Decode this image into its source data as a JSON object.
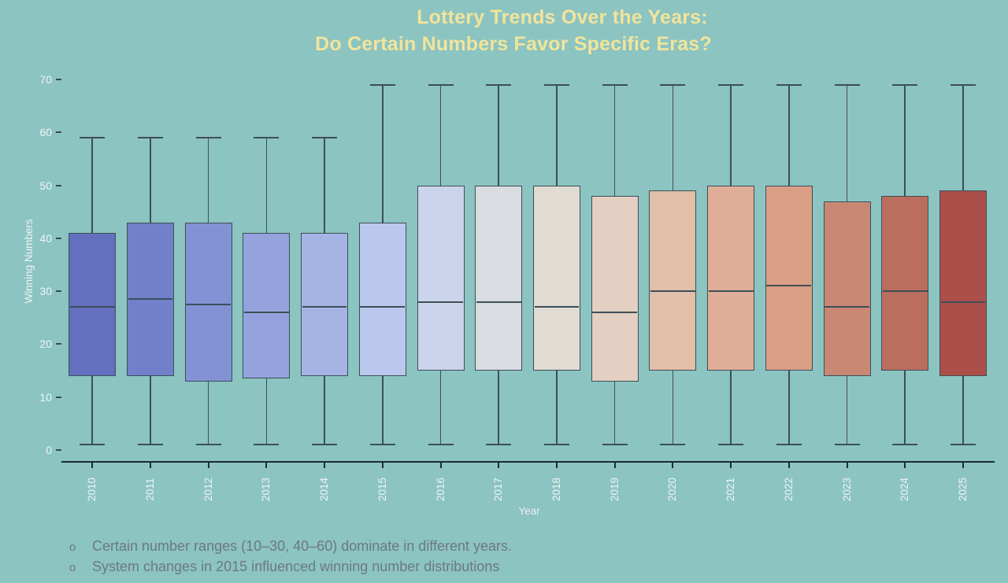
{
  "title": {
    "line1": "Lottery Trends Over the Years:",
    "line2": "Do Certain Numbers Favor Specific Eras?"
  },
  "chart_data": {
    "type": "box",
    "title": "Lottery Trends Over the Years: Do Certain Numbers Favor Specific Eras?",
    "xlabel": "Year",
    "ylabel": "Winning Numbers",
    "ylim": [
      0,
      70
    ],
    "yticks": [
      0,
      10,
      20,
      30,
      40,
      50,
      60,
      70
    ],
    "categories": [
      "2010",
      "2011",
      "2012",
      "2013",
      "2014",
      "2015",
      "2016",
      "2017",
      "2018",
      "2019",
      "2020",
      "2021",
      "2022",
      "2023",
      "2024",
      "2025"
    ],
    "series": [
      {
        "year": "2010",
        "whisker_low": 1,
        "q1": 14,
        "median": 27,
        "q3": 41,
        "whisker_high": 59,
        "color": "#6370bf"
      },
      {
        "year": "2011",
        "whisker_low": 1,
        "q1": 14,
        "median": 28.5,
        "q3": 43,
        "whisker_high": 59,
        "color": "#7080ca"
      },
      {
        "year": "2012",
        "whisker_low": 1,
        "q1": 13,
        "median": 27.5,
        "q3": 43,
        "whisker_high": 59,
        "color": "#8292d4"
      },
      {
        "year": "2013",
        "whisker_low": 1,
        "q1": 13.5,
        "median": 26,
        "q3": 41,
        "whisker_high": 59,
        "color": "#94a3dd"
      },
      {
        "year": "2014",
        "whisker_low": 1,
        "q1": 14,
        "median": 27,
        "q3": 41,
        "whisker_high": 59,
        "color": "#a6b4e5"
      },
      {
        "year": "2015",
        "whisker_low": 1,
        "q1": 14,
        "median": 27,
        "q3": 43,
        "whisker_high": 69,
        "color": "#bac8ee"
      },
      {
        "year": "2016",
        "whisker_low": 1,
        "q1": 15,
        "median": 28,
        "q3": 50,
        "whisker_high": 69,
        "color": "#ccd4ec"
      },
      {
        "year": "2017",
        "whisker_low": 1,
        "q1": 15,
        "median": 28,
        "q3": 50,
        "whisker_high": 69,
        "color": "#d9dce0"
      },
      {
        "year": "2018",
        "whisker_low": 1,
        "q1": 15,
        "median": 27,
        "q3": 50,
        "whisker_high": 69,
        "color": "#e0dbd3"
      },
      {
        "year": "2019",
        "whisker_low": 1,
        "q1": 13,
        "median": 26,
        "q3": 48,
        "whisker_high": 69,
        "color": "#e3d0c2"
      },
      {
        "year": "2020",
        "whisker_low": 1,
        "q1": 15,
        "median": 30,
        "q3": 49,
        "whisker_high": 69,
        "color": "#e2bfa9"
      },
      {
        "year": "2021",
        "whisker_low": 1,
        "q1": 15,
        "median": 30,
        "q3": 50,
        "whisker_high": 69,
        "color": "#e0ae98"
      },
      {
        "year": "2022",
        "whisker_low": 1,
        "q1": 15,
        "median": 31,
        "q3": 50,
        "whisker_high": 69,
        "color": "#d99e85"
      },
      {
        "year": "2023",
        "whisker_low": 1,
        "q1": 14,
        "median": 27,
        "q3": 47,
        "whisker_high": 69,
        "color": "#c98873"
      },
      {
        "year": "2024",
        "whisker_low": 1,
        "q1": 15,
        "median": 30,
        "q3": 48,
        "whisker_high": 69,
        "color": "#bb6d5e"
      },
      {
        "year": "2025",
        "whisker_low": 1,
        "q1": 14,
        "median": 28,
        "q3": 49,
        "whisker_high": 69,
        "color": "#ac4f4a"
      }
    ],
    "grid": false,
    "legend": null
  },
  "annotations": {
    "bullet": "o",
    "items": [
      "Certain number ranges (10–30, 40–60) dominate in different years.",
      "System changes in 2015 influenced winning number distributions"
    ]
  },
  "colors": {
    "background": "#8bc4c1",
    "title_text": "#f2e49c",
    "axis_text": "#eef4f4",
    "axis_line": "#1b2a30",
    "box_edge": "#3e4e57",
    "annotation_text": "#6d797d"
  }
}
